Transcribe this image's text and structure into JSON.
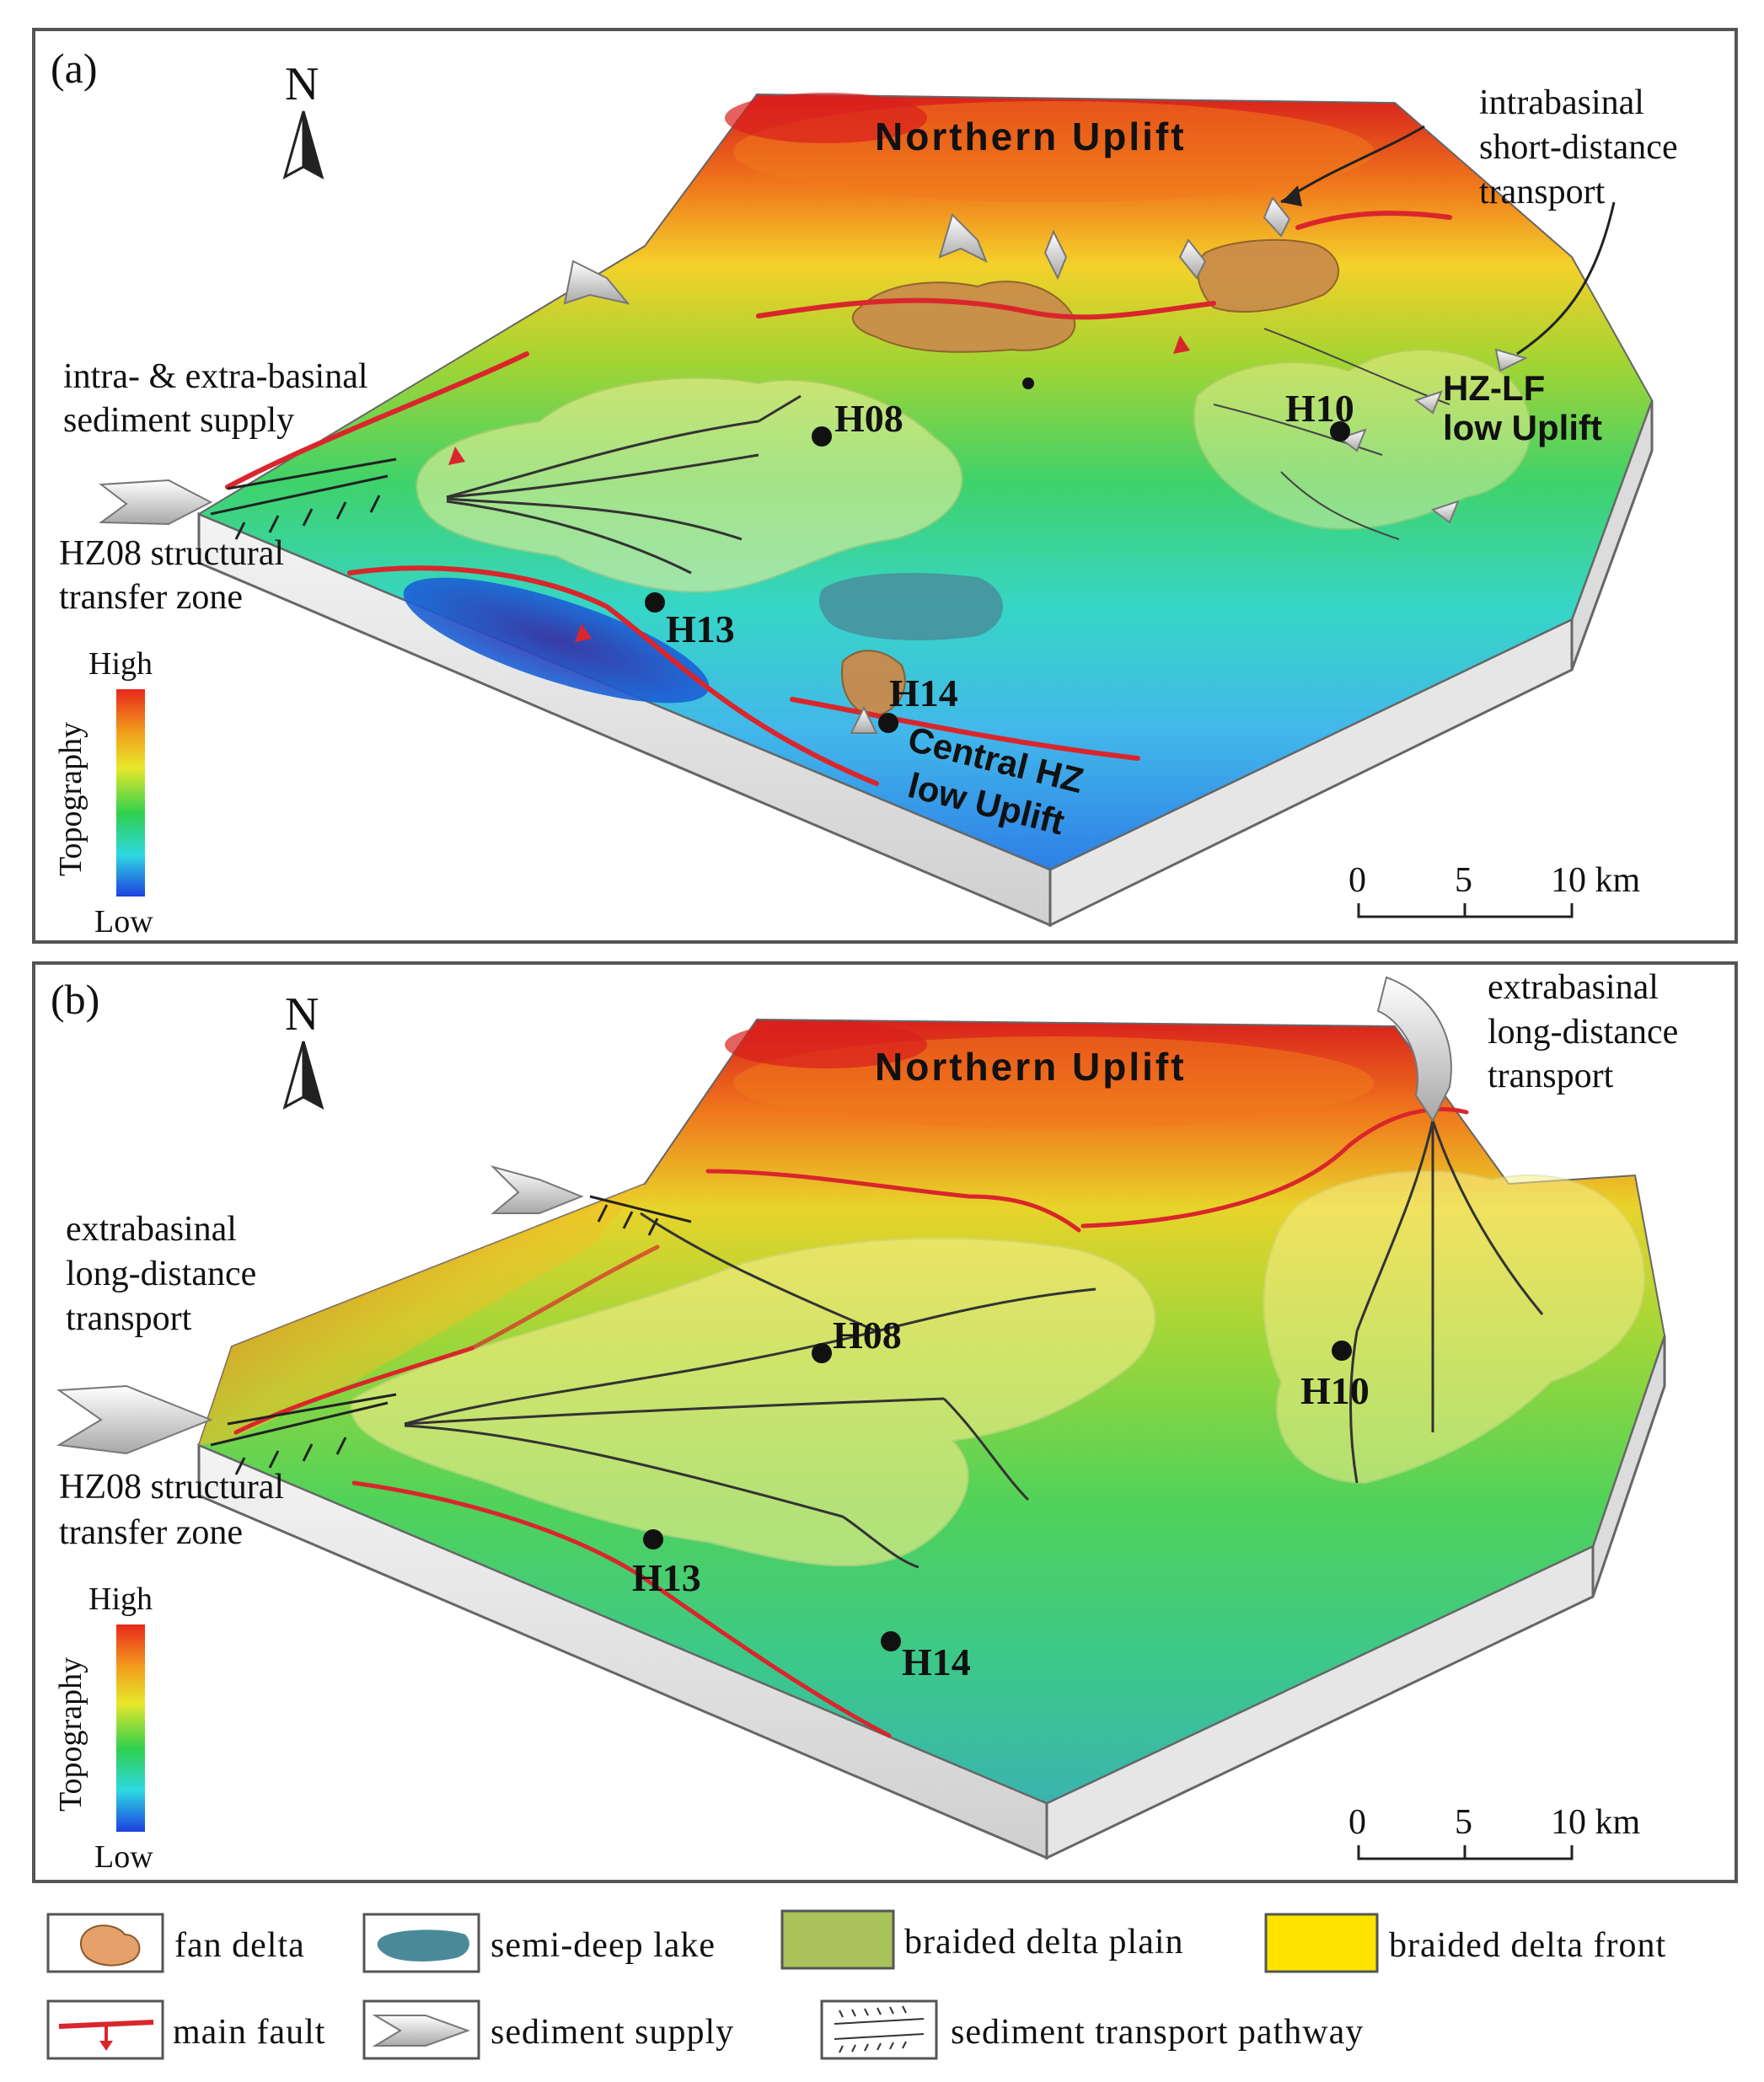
{
  "panel_a": {
    "label": "(a)",
    "north": "N",
    "northern_uplift": "Northern Uplift",
    "intrabasinal_note": [
      "intrabasinal",
      "short-distance",
      "transport"
    ],
    "supply_note": [
      "intra- & extra-basinal",
      "sediment supply"
    ],
    "transfer_zone": [
      "HZ08 structural",
      "transfer zone"
    ],
    "hz_lf": [
      "HZ-LF",
      "low Uplift"
    ],
    "central_hz": [
      "Central HZ",
      "low Uplift"
    ],
    "wells": {
      "h08": "H08",
      "h10": "H10",
      "h13": "H13",
      "h14": "H14"
    },
    "topography": {
      "title": "Topography",
      "high": "High",
      "low": "Low"
    },
    "scale": {
      "t0": "0",
      "t5": "5",
      "t10": "10 km"
    }
  },
  "panel_b": {
    "label": "(b)",
    "north": "N",
    "northern_uplift": "Northern Uplift",
    "ne_note": [
      "extrabasinal",
      "long-distance",
      "transport"
    ],
    "west_note": [
      "extrabasinal",
      "long-distance",
      "transport"
    ],
    "transfer_zone": [
      "HZ08 structural",
      "transfer zone"
    ],
    "wells": {
      "h08": "H08",
      "h10": "H10",
      "h13": "H13",
      "h14": "H14"
    },
    "topography": {
      "title": "Topography",
      "high": "High",
      "low": "Low"
    },
    "scale": {
      "t0": "0",
      "t5": "5",
      "t10": "10 km"
    }
  },
  "legend": {
    "fan_delta": "fan delta",
    "semi_deep_lake": "semi-deep lake",
    "braided_delta_plain": "braided  delta  plain",
    "braided_delta_front": "braided  delta  front",
    "main_fault": "main fault",
    "sediment_supply": "sediment supply",
    "sediment_transport_pathway": "sediment transport pathway"
  },
  "colors": {
    "fault": "#d9262c",
    "fan_delta": "#c98a4b",
    "semi_deep_lake": "#4a8a98",
    "braided_delta_plain": "#a9c25a",
    "braided_delta_front": "#ffe400",
    "frame": "#555555"
  }
}
